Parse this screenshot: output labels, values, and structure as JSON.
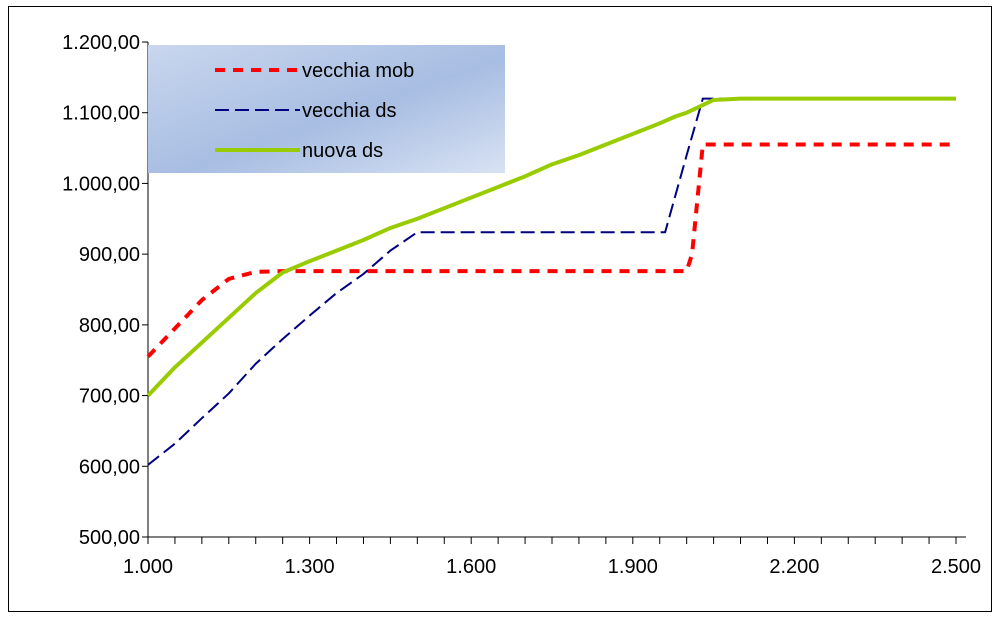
{
  "chart_data": {
    "type": "line",
    "title": "",
    "xlabel": "",
    "ylabel": "",
    "xlim": [
      1000,
      2500
    ],
    "ylim": [
      500,
      1200
    ],
    "x_ticks": [
      1000,
      1300,
      1600,
      1900,
      2200,
      2500
    ],
    "x_tick_labels": [
      "1.000",
      "1.300",
      "1.600",
      "1.900",
      "2.200",
      "2.500"
    ],
    "y_ticks": [
      500,
      600,
      700,
      800,
      900,
      1000,
      1100,
      1200
    ],
    "y_tick_labels": [
      "500,00",
      "600,00",
      "700,00",
      "800,00",
      "900,00",
      "1.000,00",
      "1.100,00",
      "1.200,00"
    ],
    "grid": false,
    "legend_position": "top-left",
    "series": [
      {
        "name": "vecchia mob",
        "color": "#ff0000",
        "style": "dotted-thick",
        "x": [
          1000,
          1050,
          1100,
          1150,
          1200,
          1250,
          1300,
          1400,
          1500,
          1600,
          1700,
          1800,
          1900,
          1960,
          2000,
          2010,
          2030,
          2040,
          2100,
          2200,
          2300,
          2400,
          2500
        ],
        "y": [
          755,
          795,
          835,
          865,
          875,
          876,
          876,
          876,
          876,
          876,
          876,
          876,
          876,
          876,
          876,
          900,
          1055,
          1055,
          1055,
          1055,
          1055,
          1055,
          1055
        ]
      },
      {
        "name": "vecchia ds",
        "color": "#000080",
        "style": "dashed",
        "x": [
          1000,
          1050,
          1100,
          1150,
          1200,
          1250,
          1300,
          1350,
          1400,
          1450,
          1500,
          1550,
          1600,
          1700,
          1800,
          1900,
          1960,
          2000,
          2030,
          2050,
          2100,
          2200,
          2300,
          2400,
          2500
        ],
        "y": [
          602,
          632,
          668,
          703,
          745,
          780,
          813,
          845,
          872,
          905,
          931,
          931,
          931,
          931,
          931,
          931,
          931,
          1040,
          1120,
          1120,
          1120,
          1120,
          1120,
          1120,
          1120
        ],
        "x_rel_note": ""
      },
      {
        "name": "nuova ds",
        "color": "#99cc00",
        "style": "solid",
        "x": [
          1000,
          1050,
          1100,
          1150,
          1200,
          1250,
          1300,
          1350,
          1400,
          1450,
          1500,
          1550,
          1600,
          1650,
          1700,
          1750,
          1800,
          1850,
          1900,
          1950,
          1980,
          2000,
          2050,
          2100,
          2200,
          2300,
          2400,
          2500
        ],
        "y": [
          700,
          740,
          775,
          810,
          845,
          874,
          890,
          905,
          920,
          937,
          950,
          965,
          980,
          995,
          1010,
          1027,
          1040,
          1055,
          1070,
          1085,
          1095,
          1100,
          1118,
          1120,
          1120,
          1120,
          1120,
          1120
        ]
      }
    ]
  }
}
